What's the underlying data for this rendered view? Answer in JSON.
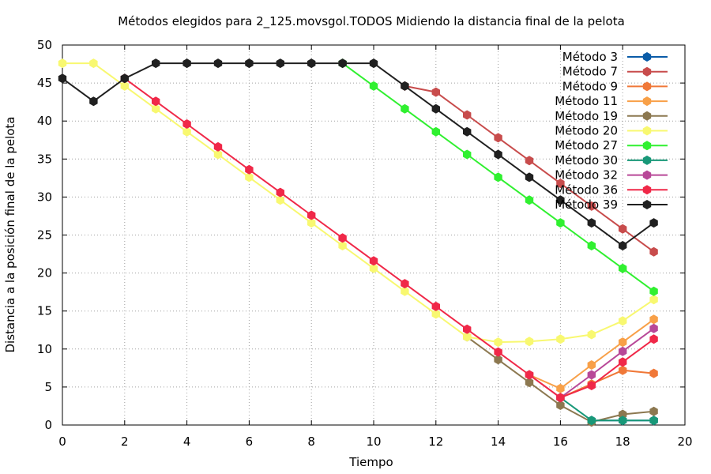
{
  "chart_data": {
    "type": "line",
    "title": "Métodos elegidos para 2_125.movsgol.TODOS Midiendo la distancia final de la pelota",
    "xlabel": "Tiempo",
    "ylabel": "Distancia a la posición final de la pelota",
    "xlim": [
      0,
      20
    ],
    "ylim": [
      0,
      50
    ],
    "xticks": [
      0,
      2,
      4,
      6,
      8,
      10,
      12,
      14,
      16,
      18,
      20
    ],
    "yticks": [
      0,
      5,
      10,
      15,
      20,
      25,
      30,
      35,
      40,
      45,
      50
    ],
    "grid": true,
    "legend_position": "top-right",
    "series": [
      {
        "name": "Método 3",
        "color": "#0a5ca8",
        "points": [
          [
            17,
            0.6
          ],
          [
            18,
            0.6
          ],
          [
            19,
            0.6
          ]
        ]
      },
      {
        "name": "Método 7",
        "color": "#c84c4c",
        "points": [
          [
            11,
            44.6
          ],
          [
            12,
            43.8
          ],
          [
            13,
            40.8
          ],
          [
            14,
            37.8
          ],
          [
            15,
            34.8
          ],
          [
            16,
            31.8
          ],
          [
            17,
            28.8
          ],
          [
            18,
            25.8
          ],
          [
            19,
            22.8
          ]
        ]
      },
      {
        "name": "Método 9",
        "color": "#f07838",
        "points": [
          [
            15,
            6.6
          ],
          [
            16,
            3.6
          ],
          [
            17,
            5.4
          ],
          [
            18,
            7.2
          ],
          [
            19,
            6.8
          ]
        ]
      },
      {
        "name": "Método 11",
        "color": "#f8a048",
        "points": [
          [
            15,
            6.6
          ],
          [
            16,
            4.8
          ],
          [
            17,
            7.9
          ],
          [
            18,
            10.9
          ],
          [
            19,
            13.9
          ]
        ]
      },
      {
        "name": "Método 19",
        "color": "#8c7850",
        "points": [
          [
            13,
            11.6
          ],
          [
            14,
            8.6
          ],
          [
            15,
            5.6
          ],
          [
            16,
            2.6
          ],
          [
            17,
            0.4
          ],
          [
            18,
            1.4
          ],
          [
            19,
            1.8
          ]
        ]
      },
      {
        "name": "Método 20",
        "color": "#f8f870",
        "points": [
          [
            0,
            47.6
          ],
          [
            1,
            47.6
          ],
          [
            2,
            44.6
          ],
          [
            3,
            41.6
          ],
          [
            4,
            38.6
          ],
          [
            5,
            35.6
          ],
          [
            6,
            32.6
          ],
          [
            7,
            29.6
          ],
          [
            8,
            26.6
          ],
          [
            9,
            23.6
          ],
          [
            10,
            20.6
          ],
          [
            11,
            17.6
          ],
          [
            12,
            14.6
          ],
          [
            13,
            11.6
          ],
          [
            14,
            10.9
          ],
          [
            15,
            11.0
          ],
          [
            16,
            11.3
          ],
          [
            17,
            11.9
          ],
          [
            18,
            13.7
          ],
          [
            19,
            16.5
          ]
        ]
      },
      {
        "name": "Método 27",
        "color": "#30f030",
        "points": [
          [
            9,
            47.6
          ],
          [
            10,
            44.6
          ],
          [
            11,
            41.6
          ],
          [
            12,
            38.6
          ],
          [
            13,
            35.6
          ],
          [
            14,
            32.6
          ],
          [
            15,
            29.6
          ],
          [
            16,
            26.6
          ],
          [
            17,
            23.6
          ],
          [
            18,
            20.6
          ],
          [
            19,
            17.6
          ]
        ]
      },
      {
        "name": "Método 30",
        "color": "#189878",
        "points": [
          [
            16,
            3.6
          ],
          [
            17,
            0.6
          ],
          [
            18,
            0.6
          ],
          [
            19,
            0.6
          ]
        ]
      },
      {
        "name": "Método 32",
        "color": "#b84898",
        "points": [
          [
            15,
            6.6
          ],
          [
            16,
            3.6
          ],
          [
            17,
            6.6
          ],
          [
            18,
            9.7
          ],
          [
            19,
            12.7
          ]
        ]
      },
      {
        "name": "Método 36",
        "color": "#f02848",
        "points": [
          [
            2,
            45.6
          ],
          [
            3,
            42.6
          ],
          [
            4,
            39.6
          ],
          [
            5,
            36.6
          ],
          [
            6,
            33.6
          ],
          [
            7,
            30.6
          ],
          [
            8,
            27.6
          ],
          [
            9,
            24.6
          ],
          [
            10,
            21.6
          ],
          [
            11,
            18.6
          ],
          [
            12,
            15.6
          ],
          [
            13,
            12.6
          ],
          [
            14,
            9.6
          ],
          [
            15,
            6.6
          ],
          [
            16,
            3.6
          ],
          [
            17,
            5.2
          ],
          [
            18,
            8.3
          ],
          [
            19,
            11.3
          ]
        ]
      },
      {
        "name": "Método 39",
        "color": "#202020",
        "points": [
          [
            0,
            45.6
          ],
          [
            1,
            42.6
          ],
          [
            2,
            45.6
          ],
          [
            3,
            47.6
          ],
          [
            4,
            47.6
          ],
          [
            5,
            47.6
          ],
          [
            6,
            47.6
          ],
          [
            7,
            47.6
          ],
          [
            8,
            47.6
          ],
          [
            9,
            47.6
          ],
          [
            10,
            47.6
          ],
          [
            11,
            44.6
          ],
          [
            12,
            41.6
          ],
          [
            13,
            38.6
          ],
          [
            14,
            35.6
          ],
          [
            15,
            32.6
          ],
          [
            16,
            29.6
          ],
          [
            17,
            26.6
          ],
          [
            18,
            23.6
          ],
          [
            19,
            26.6
          ]
        ]
      }
    ]
  }
}
